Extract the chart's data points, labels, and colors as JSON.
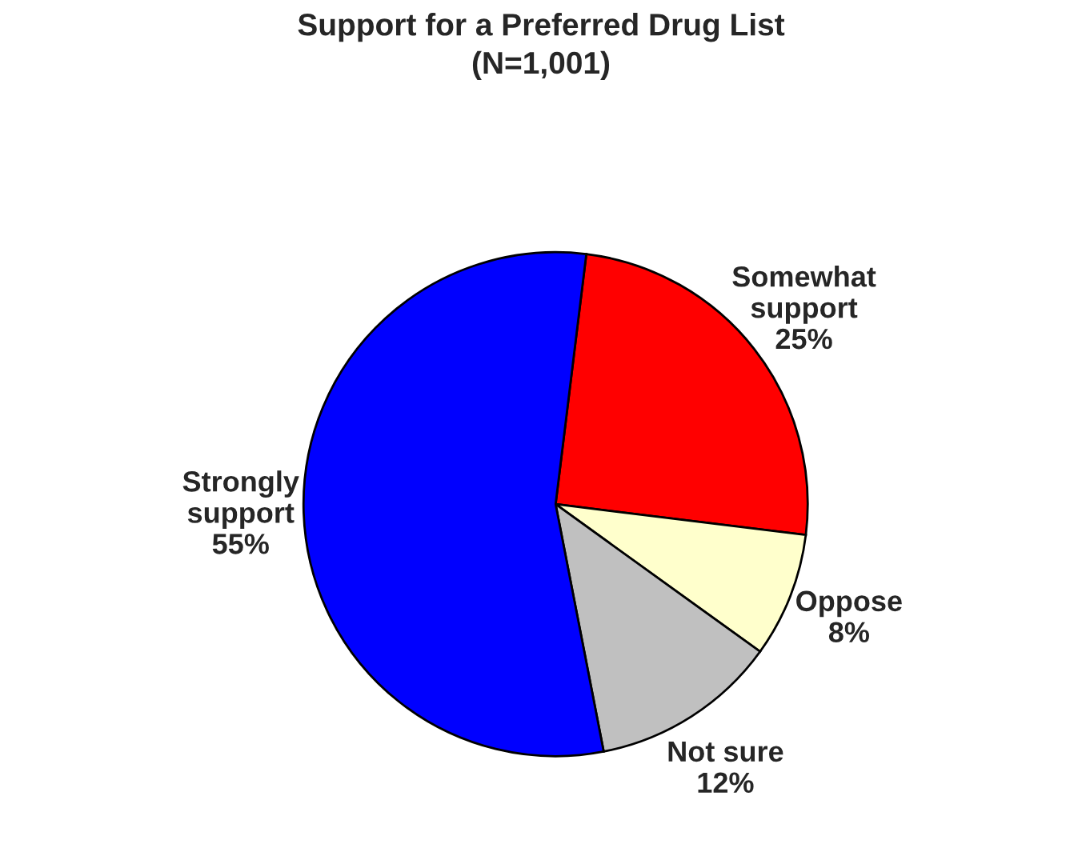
{
  "chart_data": {
    "type": "pie",
    "title": "Support for a Preferred Drug List\n(N=1,001)",
    "categories": [
      "Somewhat\nsupport",
      "Oppose",
      "Not sure",
      "Strongly\nsupport"
    ],
    "values": [
      25,
      8,
      12,
      55
    ],
    "value_labels": [
      "25%",
      "8%",
      "12%",
      "55%"
    ],
    "colors": [
      "#ff0000",
      "#ffffcc",
      "#c0c0c0",
      "#0000ff"
    ]
  }
}
